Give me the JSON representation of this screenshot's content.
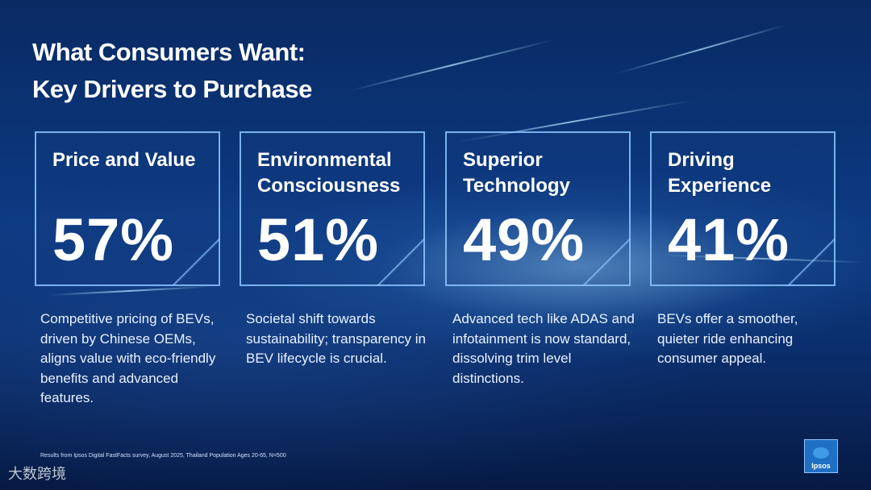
{
  "heading": {
    "line1": "What Consumers Want:",
    "line2": "Key Drivers to Purchase"
  },
  "cards": [
    {
      "title_line1": "Price and Value",
      "title_line2": "",
      "value": "57%",
      "description": "Competitive pricing of BEVs, driven by Chinese OEMs, aligns value with eco-friendly benefits and advanced features."
    },
    {
      "title_line1": "Environmental",
      "title_line2": "Consciousness",
      "value": "51%",
      "description": "Societal shift towards sustainability; transparency in BEV lifecycle is crucial."
    },
    {
      "title_line1": "Superior",
      "title_line2": "Technology",
      "value": "49%",
      "description": "Advanced tech like ADAS and infotainment is now standard, dissolving trim level distinctions."
    },
    {
      "title_line1": "Driving",
      "title_line2": "Experience",
      "value": "41%",
      "description": "BEVs offer a smoother, quieter ride enhancing consumer appeal."
    }
  ],
  "footnote": "Results from Ipsos Digital FastFacts survey, August 2025, Thailand Population Ages 20-65, N=500",
  "logo_text": "Ipsos",
  "watermark": "大数跨境"
}
